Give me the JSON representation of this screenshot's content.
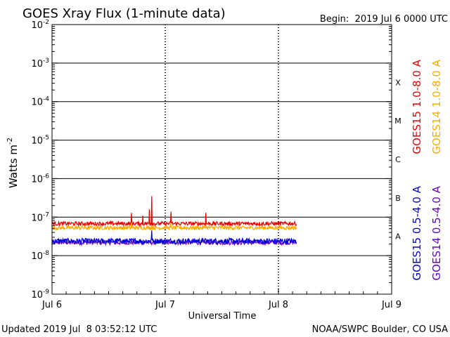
{
  "chart_data": {
    "type": "line",
    "title": "GOES Xray Flux (1-minute data)",
    "begin_label": "Begin:  2019 Jul 6 0000 UTC",
    "xlabel": "Universal Time",
    "ylabel": "Watts m",
    "ylabel_exp": "-2",
    "x_units": "days since 2019 Jul 6 0000 UTC",
    "xlim": [
      0,
      3
    ],
    "x_ticks": [
      {
        "value": 0,
        "label": "Jul 6"
      },
      {
        "value": 1,
        "label": "Jul 7"
      },
      {
        "value": 2,
        "label": "Jul 8"
      },
      {
        "value": 3,
        "label": "Jul 9"
      }
    ],
    "y_scale": "log",
    "ylim": [
      1e-09,
      0.01
    ],
    "y_ticks": [
      {
        "exp": -9,
        "base": "10",
        "sup": "-9"
      },
      {
        "exp": -8,
        "base": "10",
        "sup": "-8"
      },
      {
        "exp": -7,
        "base": "10",
        "sup": "-7"
      },
      {
        "exp": -6,
        "base": "10",
        "sup": "-6"
      },
      {
        "exp": -5,
        "base": "10",
        "sup": "-5"
      },
      {
        "exp": -4,
        "base": "10",
        "sup": "-4"
      },
      {
        "exp": -3,
        "base": "10",
        "sup": "-3"
      },
      {
        "exp": -2,
        "base": "10",
        "sup": "-2"
      }
    ],
    "gridlines_log": [
      -8,
      -7,
      -6,
      -5,
      -4,
      -3
    ],
    "flare_classes": [
      {
        "label": "A",
        "log_center": -7.5
      },
      {
        "label": "B",
        "log_center": -6.5
      },
      {
        "label": "C",
        "log_center": -5.5
      },
      {
        "label": "M",
        "log_center": -4.5
      },
      {
        "label": "X",
        "log_center": -3.5
      }
    ],
    "data_end_day": 2.16,
    "series": [
      {
        "name": "GOES15 1.0-8.0 A",
        "color": "#ee0000",
        "legend_group": "right",
        "baseline": 6.8e-08,
        "noise": 0.05,
        "spikes": [
          {
            "day": 0.7,
            "value": 1.3e-07
          },
          {
            "day": 0.8,
            "value": 1.1e-07
          },
          {
            "day": 0.86,
            "value": 1.6e-07
          },
          {
            "day": 0.88,
            "value": 3.5e-07
          },
          {
            "day": 1.05,
            "value": 1.4e-07
          },
          {
            "day": 1.36,
            "value": 1.3e-07
          }
        ]
      },
      {
        "name": "GOES14 1.0-8.0 A",
        "color": "#ffaa00",
        "legend_group": "right",
        "baseline": 5.3e-08,
        "noise": 0.05,
        "spikes": [
          {
            "day": 0.7,
            "value": 8e-08
          },
          {
            "day": 0.88,
            "value": 1.3e-07
          },
          {
            "day": 1.05,
            "value": 9e-08
          },
          {
            "day": 1.36,
            "value": 8.5e-08
          }
        ]
      },
      {
        "name": "GOES15 0.5-4.0 A",
        "color": "#0000dd",
        "legend_group": "left",
        "baseline": 2.4e-08,
        "noise": 0.07,
        "spikes": [
          {
            "day": 0.88,
            "value": 4.5e-08
          }
        ]
      },
      {
        "name": "GOES14 0.5-4.0 A",
        "color": "#6600cc",
        "legend_group": "left",
        "baseline": 2.2e-08,
        "noise": 0.06,
        "spikes": []
      }
    ]
  },
  "footer": {
    "updated": "Updated 2019 Jul  8 03:52:12 UTC",
    "credit": "NOAA/SWPC Boulder, CO USA"
  }
}
